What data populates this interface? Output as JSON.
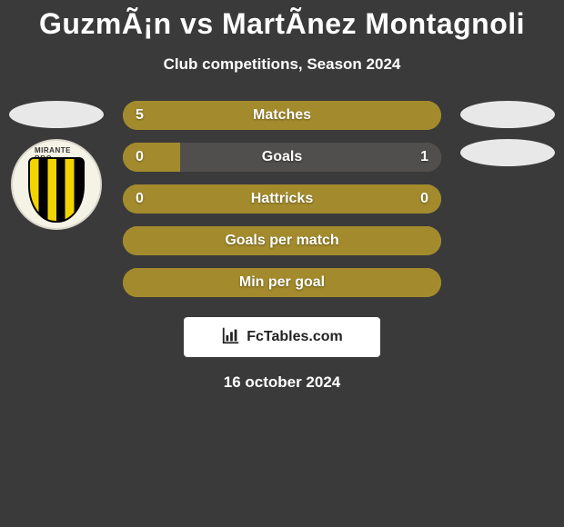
{
  "title": "GuzmÃ¡n vs MartÃ­nez Montagnoli",
  "subtitle": "Club competitions, Season 2024",
  "date": "16 october 2024",
  "footer_brand": "FcTables.com",
  "colors": {
    "left": "#a38b2d",
    "right": "#504f4d",
    "bar_empty": "#a38b2d"
  },
  "left_player": {
    "crest_text": "MIRANTE BRO"
  },
  "stats": [
    {
      "label": "Matches",
      "left_val": "5",
      "right_val": "",
      "left_pct": 100,
      "right_pct": 0,
      "show_left": true,
      "show_right": false
    },
    {
      "label": "Goals",
      "left_val": "0",
      "right_val": "1",
      "left_pct": 18,
      "right_pct": 82,
      "show_left": true,
      "show_right": true
    },
    {
      "label": "Hattricks",
      "left_val": "0",
      "right_val": "0",
      "left_pct": 100,
      "right_pct": 0,
      "show_left": true,
      "show_right": true
    },
    {
      "label": "Goals per match",
      "left_val": "",
      "right_val": "",
      "left_pct": 100,
      "right_pct": 0,
      "show_left": false,
      "show_right": false
    },
    {
      "label": "Min per goal",
      "left_val": "",
      "right_val": "",
      "left_pct": 100,
      "right_pct": 0,
      "show_left": false,
      "show_right": false
    }
  ]
}
